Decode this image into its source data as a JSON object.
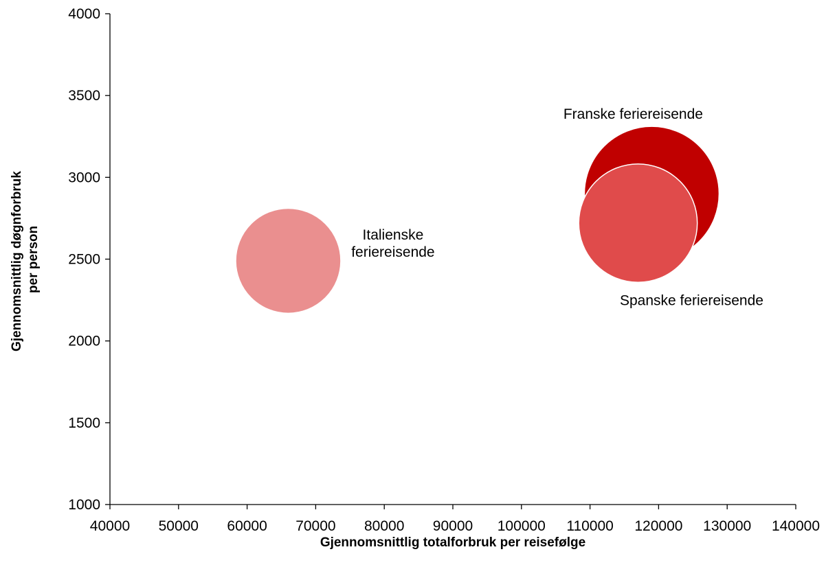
{
  "chart_data": {
    "type": "scatter",
    "xlabel": "Gjennomsnittlig totalforbruk per reisefølge",
    "ylabel": [
      "Gjennomsnittlig døgnforbruk",
      "per person"
    ],
    "xlim": [
      40000,
      140000
    ],
    "ylim": [
      1000,
      4000
    ],
    "xticks": [
      "40000",
      "50000",
      "60000",
      "70000",
      "80000",
      "90000",
      "100000",
      "110000",
      "120000",
      "130000",
      "140000"
    ],
    "yticks": [
      "1000",
      "1500",
      "2000",
      "2500",
      "3000",
      "3500",
      "4000"
    ],
    "grid": false,
    "legend": "none",
    "series": [
      {
        "label_lines": [
          "Franske feriereisende"
        ],
        "x": 119000,
        "y": 2900,
        "size": 1.0,
        "color": "#c00000",
        "label_position": "top-left"
      },
      {
        "label_lines": [
          "Spanske feriereisende"
        ],
        "x": 117000,
        "y": 2720,
        "size": 0.88,
        "color": "#e04b4b",
        "label_position": "bottom"
      },
      {
        "label_lines": [
          "Italienske",
          "feriereisende"
        ],
        "x": 66000,
        "y": 2490,
        "size": 0.78,
        "color": "#ea8f8f",
        "label_position": "right"
      }
    ]
  }
}
